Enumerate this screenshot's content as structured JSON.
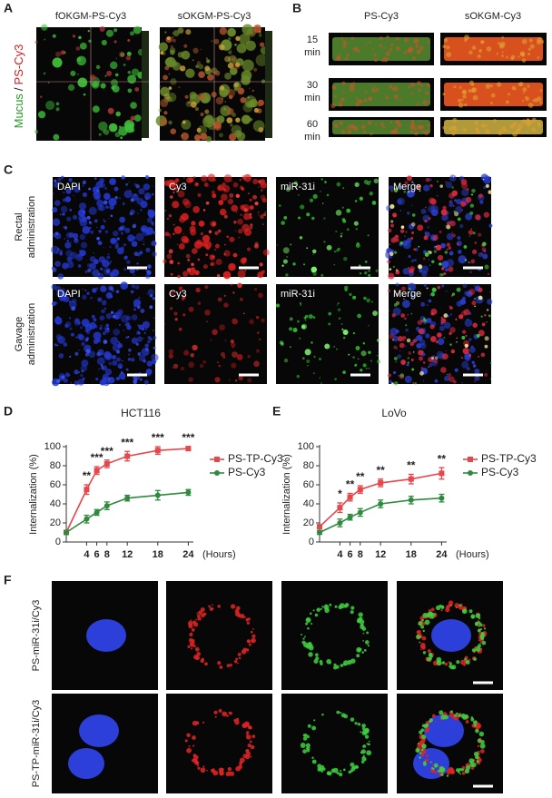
{
  "panels": {
    "A": {
      "label": "A",
      "titles": [
        "fOKGM-PS-Cy3",
        "sOKGM-PS-Cy3"
      ],
      "y_label": [
        "Mucus",
        "/",
        "PS-Cy3"
      ]
    },
    "B": {
      "label": "B",
      "titles": [
        "PS-Cy3",
        "sOKGM-Cy3"
      ],
      "rows": [
        [
          "15",
          "min"
        ],
        [
          "30",
          "min"
        ],
        [
          "60",
          "min"
        ]
      ]
    },
    "C": {
      "label": "C",
      "rows": [
        {
          "label": [
            "Rectal",
            "administration"
          ],
          "channels": [
            "DAPI",
            "Cy3",
            "miR-31i",
            "Merge"
          ]
        },
        {
          "label": [
            "Gavage",
            "administration"
          ],
          "channels": [
            "DAPI",
            "Cy3",
            "miR-31i",
            "Merge"
          ]
        }
      ]
    },
    "D": {
      "label": "D"
    },
    "E": {
      "label": "E"
    },
    "F": {
      "label": "F",
      "rows": [
        "PS-miR-31i/Cy3",
        "PS-TP-miR-31i/Cy3"
      ]
    }
  },
  "chart_data": [
    {
      "type": "line",
      "title": "HCT116",
      "y_label": "Internalization (%)",
      "x_unit": "(Hours)",
      "x": [
        0,
        4,
        6,
        8,
        12,
        18,
        24
      ],
      "xlim": [
        0,
        25
      ],
      "xticks": [
        4,
        6,
        8,
        12,
        18,
        24
      ],
      "ylim": [
        0,
        100
      ],
      "yticks": [
        0,
        20,
        40,
        60,
        80,
        100
      ],
      "legend": "right",
      "series": [
        {
          "name": "PS-TP-Cy3",
          "color": "#e5474b",
          "marker": "square",
          "values": [
            10,
            55,
            75,
            82,
            90,
            96,
            98
          ],
          "errors": [
            2,
            5,
            4,
            4,
            5,
            4,
            2
          ]
        },
        {
          "name": "PS-Cy3",
          "color": "#2f8a3f",
          "marker": "circle",
          "values": [
            10,
            24,
            31,
            38,
            46,
            49,
            52
          ],
          "errors": [
            2,
            4,
            3,
            4,
            3,
            5,
            3
          ]
        }
      ],
      "annotations": [
        {
          "x": 4,
          "text": "**"
        },
        {
          "x": 6,
          "text": "***"
        },
        {
          "x": 8,
          "text": "***"
        },
        {
          "x": 12,
          "text": "***"
        },
        {
          "x": 18,
          "text": "***"
        },
        {
          "x": 24,
          "text": "***"
        }
      ]
    },
    {
      "type": "line",
      "title": "LoVo",
      "y_label": "Internalization (%)",
      "x_unit": "(Hours)",
      "x": [
        0,
        4,
        6,
        8,
        12,
        18,
        24
      ],
      "xlim": [
        0,
        25
      ],
      "xticks": [
        4,
        6,
        8,
        12,
        18,
        24
      ],
      "ylim": [
        0,
        100
      ],
      "yticks": [
        0,
        20,
        40,
        60,
        80,
        100
      ],
      "legend": "right",
      "series": [
        {
          "name": "PS-TP-Cy3",
          "color": "#e5474b",
          "marker": "square",
          "values": [
            16,
            36,
            47,
            55,
            62,
            66,
            72
          ],
          "errors": [
            2,
            5,
            4,
            4,
            4,
            5,
            6
          ]
        },
        {
          "name": "PS-Cy3",
          "color": "#2f8a3f",
          "marker": "circle",
          "values": [
            10,
            20,
            26,
            31,
            40,
            44,
            46
          ],
          "errors": [
            2,
            4,
            3,
            4,
            4,
            4,
            4
          ]
        }
      ],
      "annotations": [
        {
          "x": 4,
          "text": "*"
        },
        {
          "x": 6,
          "text": "**"
        },
        {
          "x": 8,
          "text": "**"
        },
        {
          "x": 12,
          "text": "**"
        },
        {
          "x": 18,
          "text": "**"
        },
        {
          "x": 24,
          "text": "**"
        }
      ]
    }
  ]
}
